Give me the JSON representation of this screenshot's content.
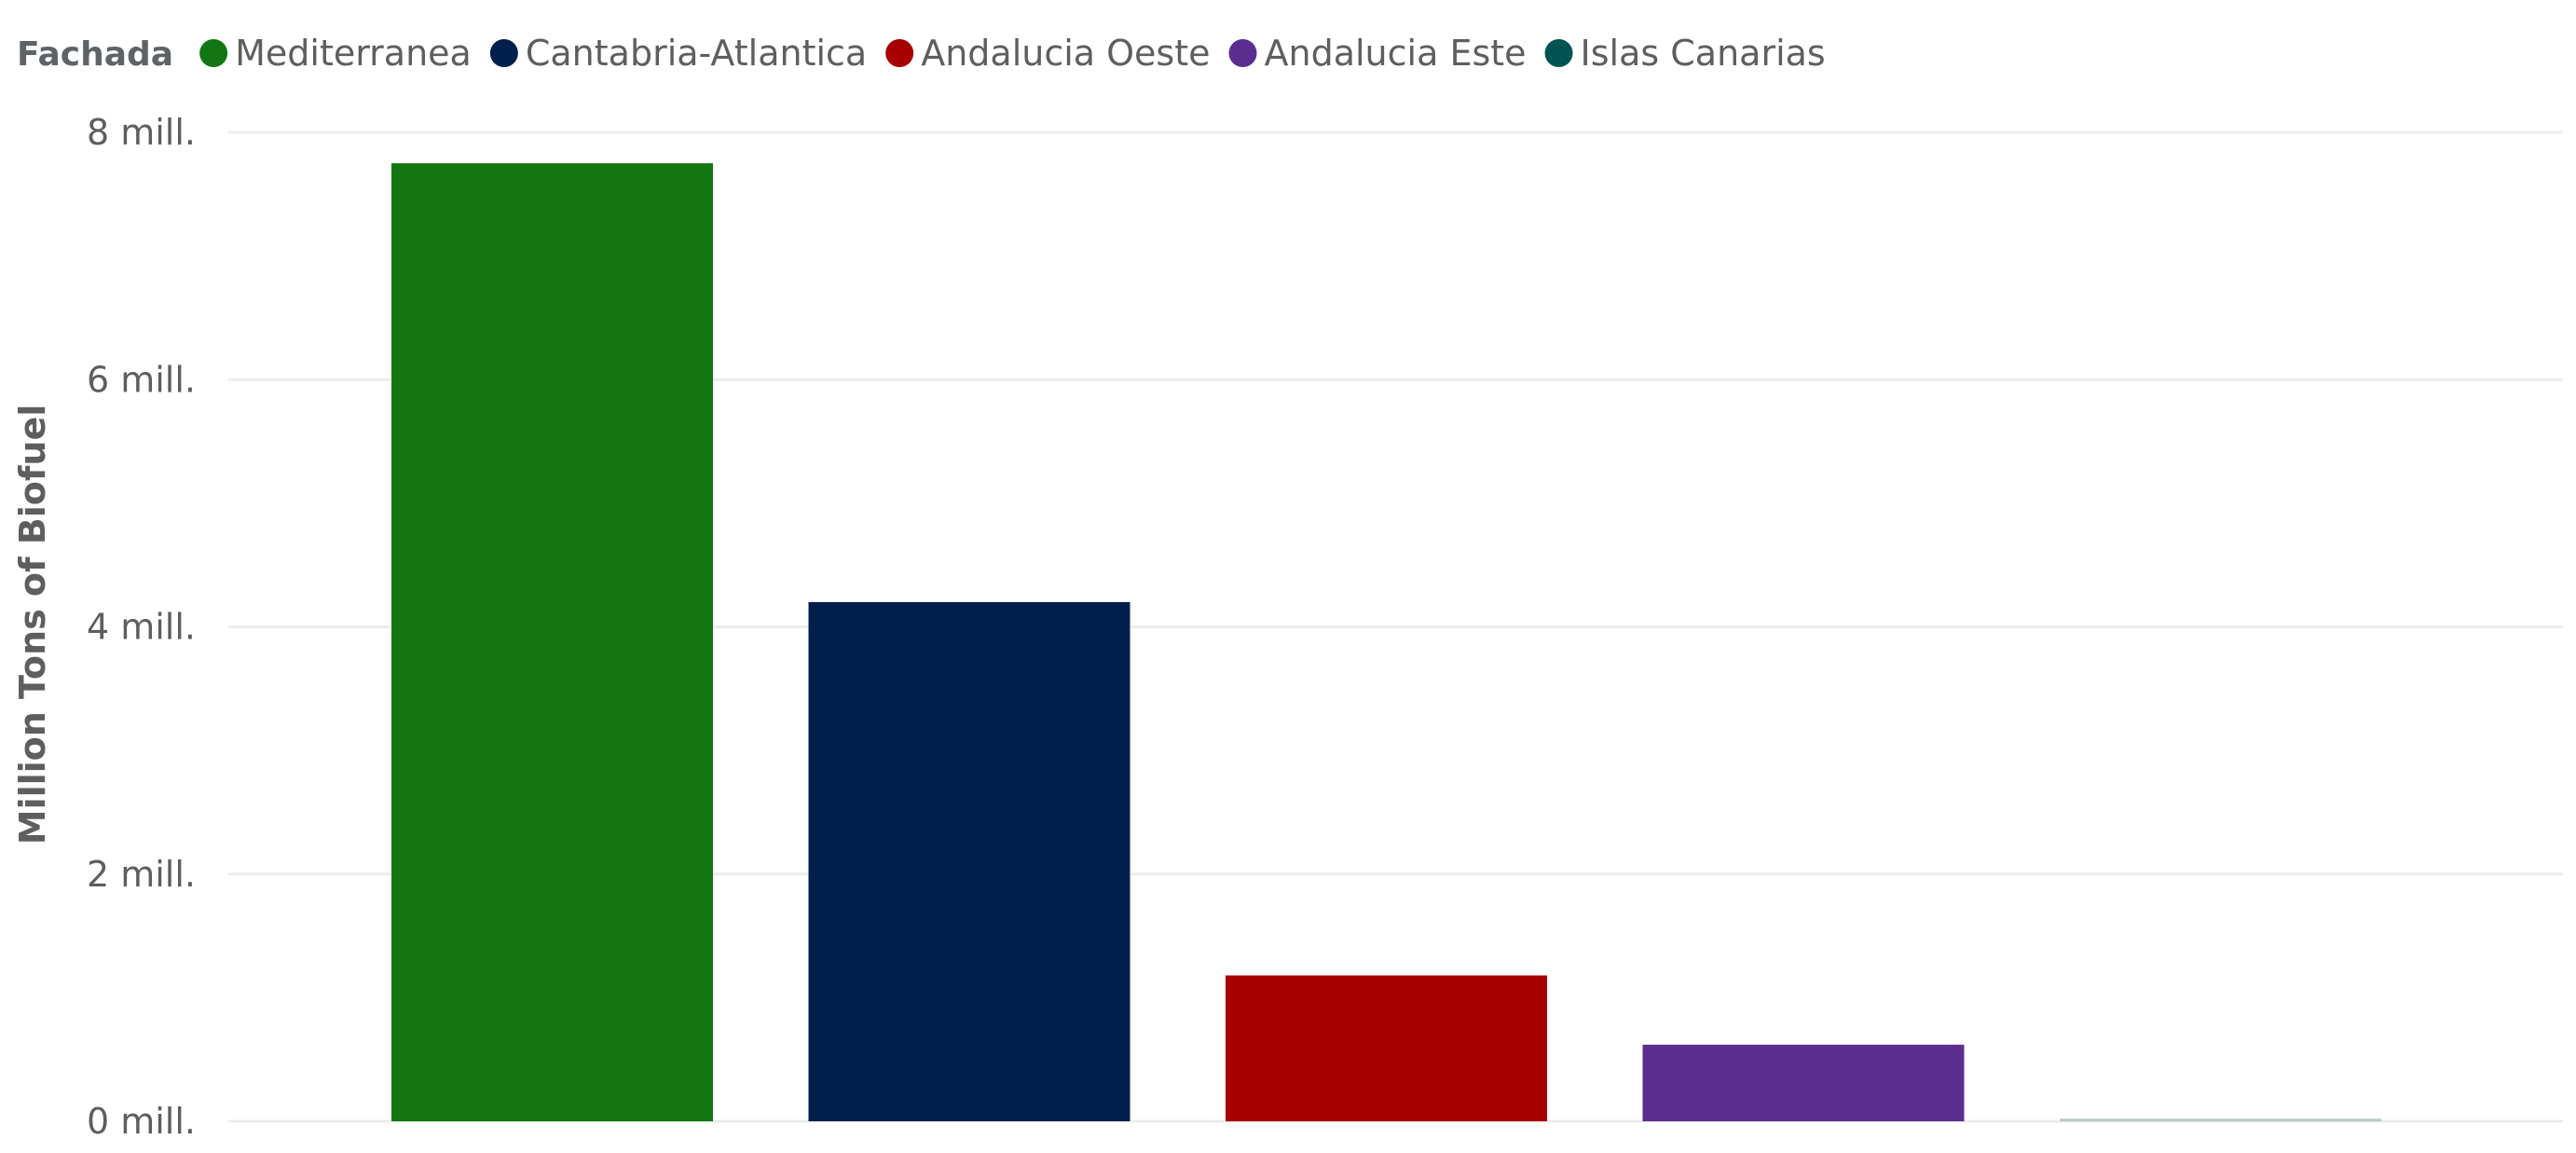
{
  "legend": {
    "title": "Fachada"
  },
  "chart_data": {
    "type": "bar",
    "categories": [
      "Mediterranea",
      "Cantabria-Atlantica",
      "Andalucia Oeste",
      "Andalucia Este",
      "Islas Canarias"
    ],
    "values": [
      7750000,
      4200000,
      1180000,
      620000,
      10000
    ],
    "colors": [
      "#127712",
      "#001f4d",
      "#a80000",
      "#5c2d91",
      "#005353"
    ],
    "ylabel": "Million Tons of Biofuel",
    "xlabel": "",
    "ylim": [
      0,
      8000000
    ],
    "yticks": [
      {
        "value": 0,
        "label": "0 mill."
      },
      {
        "value": 2000000,
        "label": "2 mill."
      },
      {
        "value": 4000000,
        "label": "4 mill."
      },
      {
        "value": 6000000,
        "label": "6 mill."
      },
      {
        "value": 8000000,
        "label": "8 mill."
      }
    ],
    "grid": true,
    "legend_position": "top-left"
  }
}
